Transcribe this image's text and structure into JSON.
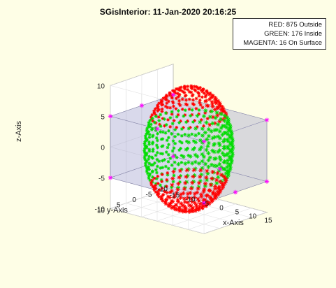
{
  "chart_data": {
    "type": "scatter",
    "title": "SGisInterior: 11-Jan-2020 20:16:25",
    "xlabel": "x-Axis",
    "ylabel": "y-Axis",
    "zlabel": "z-Axis",
    "xlim": [
      -15,
      15
    ],
    "ylim": [
      -10,
      10
    ],
    "zlim": [
      -10,
      10
    ],
    "x_ticks": [
      "-15",
      "-10",
      "-5",
      "0",
      "5",
      "10",
      "15"
    ],
    "y_ticks": [
      "-10",
      "-5",
      "0",
      "5",
      "10"
    ],
    "z_ticks": [
      "-10",
      "-5",
      "0",
      "5",
      "10"
    ],
    "grid": true,
    "legend_position": "top-right",
    "legend": [
      {
        "text": "RED: 875 Outside",
        "color": "#ff0000"
      },
      {
        "text": "GREEN: 176 Inside",
        "color": "#00dd00"
      },
      {
        "text": "MAGENTA: 16 On Surface",
        "color": "#ff00ff"
      }
    ],
    "sphere": {
      "center": [
        0,
        0,
        0
      ],
      "radius": 10
    },
    "box": {
      "x": [
        -15,
        15
      ],
      "y": [
        -10,
        10
      ],
      "z": [
        -5,
        5
      ],
      "color": "#a0a0cc"
    },
    "series": [
      {
        "color": "#ff0000",
        "count": 875
      },
      {
        "color": "#00dd00",
        "count": 176
      },
      {
        "color": "#ff00ff",
        "count": 16
      }
    ]
  }
}
